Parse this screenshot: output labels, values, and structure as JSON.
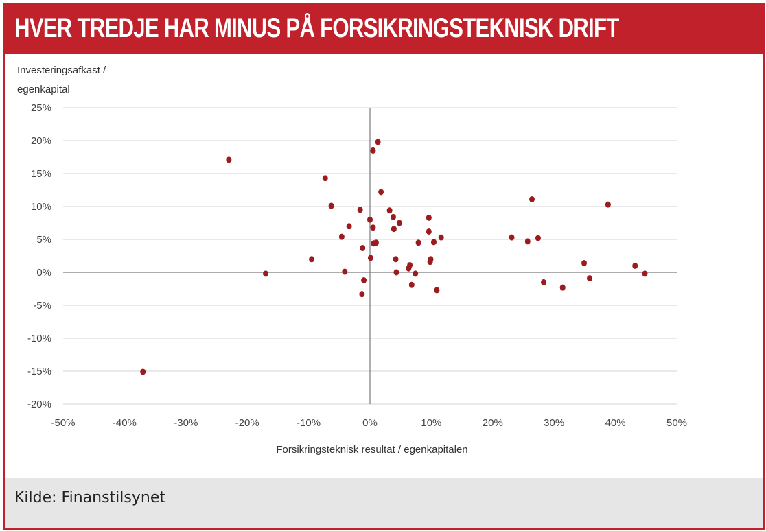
{
  "header": {
    "title": "HVER TREDJE HAR MINUS PÅ FORSIKRINGSTEKNISK DRIFT"
  },
  "footer": {
    "source": "Kilde: Finanstilsynet"
  },
  "colors": {
    "accent": "#c0212b",
    "point": "#9b1b1e",
    "source_bg": "#e6e6e6"
  },
  "chart_data": {
    "type": "scatter",
    "xlabel": "Forsikringsteknisk resultat / egenkapitalen",
    "ylabel_lines": [
      "Investeringsafkast /",
      "egenkapital"
    ],
    "xlim": [
      -50,
      50
    ],
    "ylim": [
      -20,
      25
    ],
    "x_ticks": [
      "-50%",
      "-40%",
      "-30%",
      "-20%",
      "-10%",
      "0%",
      "10%",
      "20%",
      "30%",
      "40%",
      "50%"
    ],
    "y_ticks": [
      "25%",
      "20%",
      "15%",
      "10%",
      "5%",
      "0%",
      "-5%",
      "-10%",
      "-15%",
      "-20%"
    ],
    "grid": "horizontal",
    "points": [
      {
        "x": -37,
        "y": -15.1
      },
      {
        "x": -23,
        "y": 17.1
      },
      {
        "x": -17,
        "y": -0.2
      },
      {
        "x": -9.5,
        "y": 2.0
      },
      {
        "x": -7.3,
        "y": 14.3
      },
      {
        "x": -6.3,
        "y": 10.1
      },
      {
        "x": -4.6,
        "y": 5.4
      },
      {
        "x": -4.1,
        "y": 0.1
      },
      {
        "x": -3.4,
        "y": 7.0
      },
      {
        "x": -1.6,
        "y": 9.5
      },
      {
        "x": -1.2,
        "y": 3.7
      },
      {
        "x": -1.3,
        "y": -3.3
      },
      {
        "x": -1.0,
        "y": -1.2
      },
      {
        "x": 0.0,
        "y": 8.0
      },
      {
        "x": 0.1,
        "y": 2.2
      },
      {
        "x": 0.5,
        "y": 6.8
      },
      {
        "x": 0.5,
        "y": 18.5
      },
      {
        "x": 0.6,
        "y": 4.4
      },
      {
        "x": 1.0,
        "y": 4.5
      },
      {
        "x": 1.3,
        "y": 19.8
      },
      {
        "x": 1.8,
        "y": 12.2
      },
      {
        "x": 3.2,
        "y": 9.4
      },
      {
        "x": 3.8,
        "y": 8.4
      },
      {
        "x": 3.9,
        "y": 6.6
      },
      {
        "x": 4.2,
        "y": 2.0
      },
      {
        "x": 4.3,
        "y": 0.0
      },
      {
        "x": 4.8,
        "y": 7.5
      },
      {
        "x": 6.3,
        "y": 0.6
      },
      {
        "x": 6.5,
        "y": 1.1
      },
      {
        "x": 6.8,
        "y": -1.9
      },
      {
        "x": 7.4,
        "y": -0.2
      },
      {
        "x": 7.9,
        "y": 4.5
      },
      {
        "x": 9.6,
        "y": 8.3
      },
      {
        "x": 9.6,
        "y": 6.2
      },
      {
        "x": 9.8,
        "y": 1.6
      },
      {
        "x": 9.9,
        "y": 2.0
      },
      {
        "x": 10.4,
        "y": 4.6
      },
      {
        "x": 10.9,
        "y": -2.7
      },
      {
        "x": 11.6,
        "y": 5.3
      },
      {
        "x": 23.1,
        "y": 5.3
      },
      {
        "x": 25.7,
        "y": 4.7
      },
      {
        "x": 26.4,
        "y": 11.1
      },
      {
        "x": 27.4,
        "y": 5.2
      },
      {
        "x": 28.3,
        "y": -1.5
      },
      {
        "x": 31.4,
        "y": -2.3
      },
      {
        "x": 34.9,
        "y": 1.4
      },
      {
        "x": 35.8,
        "y": -0.9
      },
      {
        "x": 38.8,
        "y": 10.3
      },
      {
        "x": 43.2,
        "y": 1.0
      },
      {
        "x": 44.8,
        "y": -0.2
      }
    ]
  }
}
